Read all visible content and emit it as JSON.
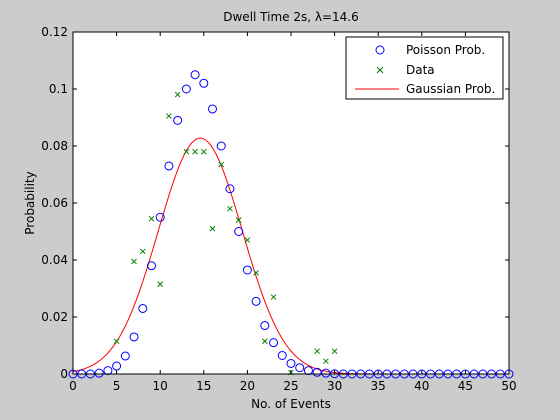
{
  "chart_data": {
    "type": "scatter",
    "title": "Dwell Time 2s, λ=14.6",
    "xlabel": "No. of Events",
    "ylabel": "Probability",
    "xlim": [
      0,
      50
    ],
    "ylim": [
      0,
      0.12
    ],
    "xticks": [
      "0",
      "5",
      "10",
      "15",
      "20",
      "25",
      "30",
      "35",
      "40",
      "45",
      "50"
    ],
    "yticks": [
      "0",
      "0.02",
      "0.04",
      "0.06",
      "0.08",
      "0.1",
      "0.12"
    ],
    "grid": false,
    "legend_position": "top-right",
    "series": [
      {
        "name": "Poisson Prob.",
        "kind": "circle-markers",
        "color": "#0000ff",
        "x": [
          0,
          1,
          2,
          3,
          4,
          5,
          6,
          7,
          8,
          9,
          10,
          11,
          12,
          13,
          14,
          15,
          16,
          17,
          18,
          19,
          20,
          21,
          22,
          23,
          24,
          25,
          26,
          27,
          28,
          29,
          30,
          31,
          32,
          33,
          34,
          35,
          36,
          37,
          38,
          39,
          40,
          41,
          42,
          43,
          44,
          45,
          46,
          47,
          48,
          49,
          50
        ],
        "y": [
          0,
          0,
          0,
          0.0003,
          0.0012,
          0.0028,
          0.0063,
          0.013,
          0.023,
          0.038,
          0.055,
          0.073,
          0.089,
          0.1,
          0.105,
          0.102,
          0.093,
          0.08,
          0.065,
          0.05,
          0.0365,
          0.0255,
          0.017,
          0.011,
          0.0065,
          0.0037,
          0.0022,
          0.0012,
          0.0006,
          0.0003,
          0.0001,
          0,
          0,
          0,
          0,
          0,
          0,
          0,
          0,
          0,
          0,
          0,
          0,
          0,
          0,
          0,
          0,
          0,
          0,
          0,
          0
        ]
      },
      {
        "name": "Data",
        "kind": "x-markers",
        "color": "#008000",
        "x": [
          5,
          7,
          8,
          9,
          10,
          11,
          12,
          13,
          14,
          15,
          16,
          17,
          18,
          19,
          20,
          21,
          22,
          23,
          25,
          28,
          29,
          30
        ],
        "y": [
          0.0115,
          0.0395,
          0.043,
          0.0545,
          0.0315,
          0.0905,
          0.098,
          0.078,
          0.078,
          0.078,
          0.051,
          0.0735,
          0.058,
          0.054,
          0.047,
          0.0355,
          0.0115,
          0.027,
          0.0005,
          0.008,
          0.0045,
          0.008
        ]
      },
      {
        "name": "Gaussian Prob.",
        "kind": "line",
        "color": "#ff0000",
        "mean": 14.6,
        "sd": 4.82,
        "x_range": [
          0,
          50
        ]
      }
    ]
  }
}
